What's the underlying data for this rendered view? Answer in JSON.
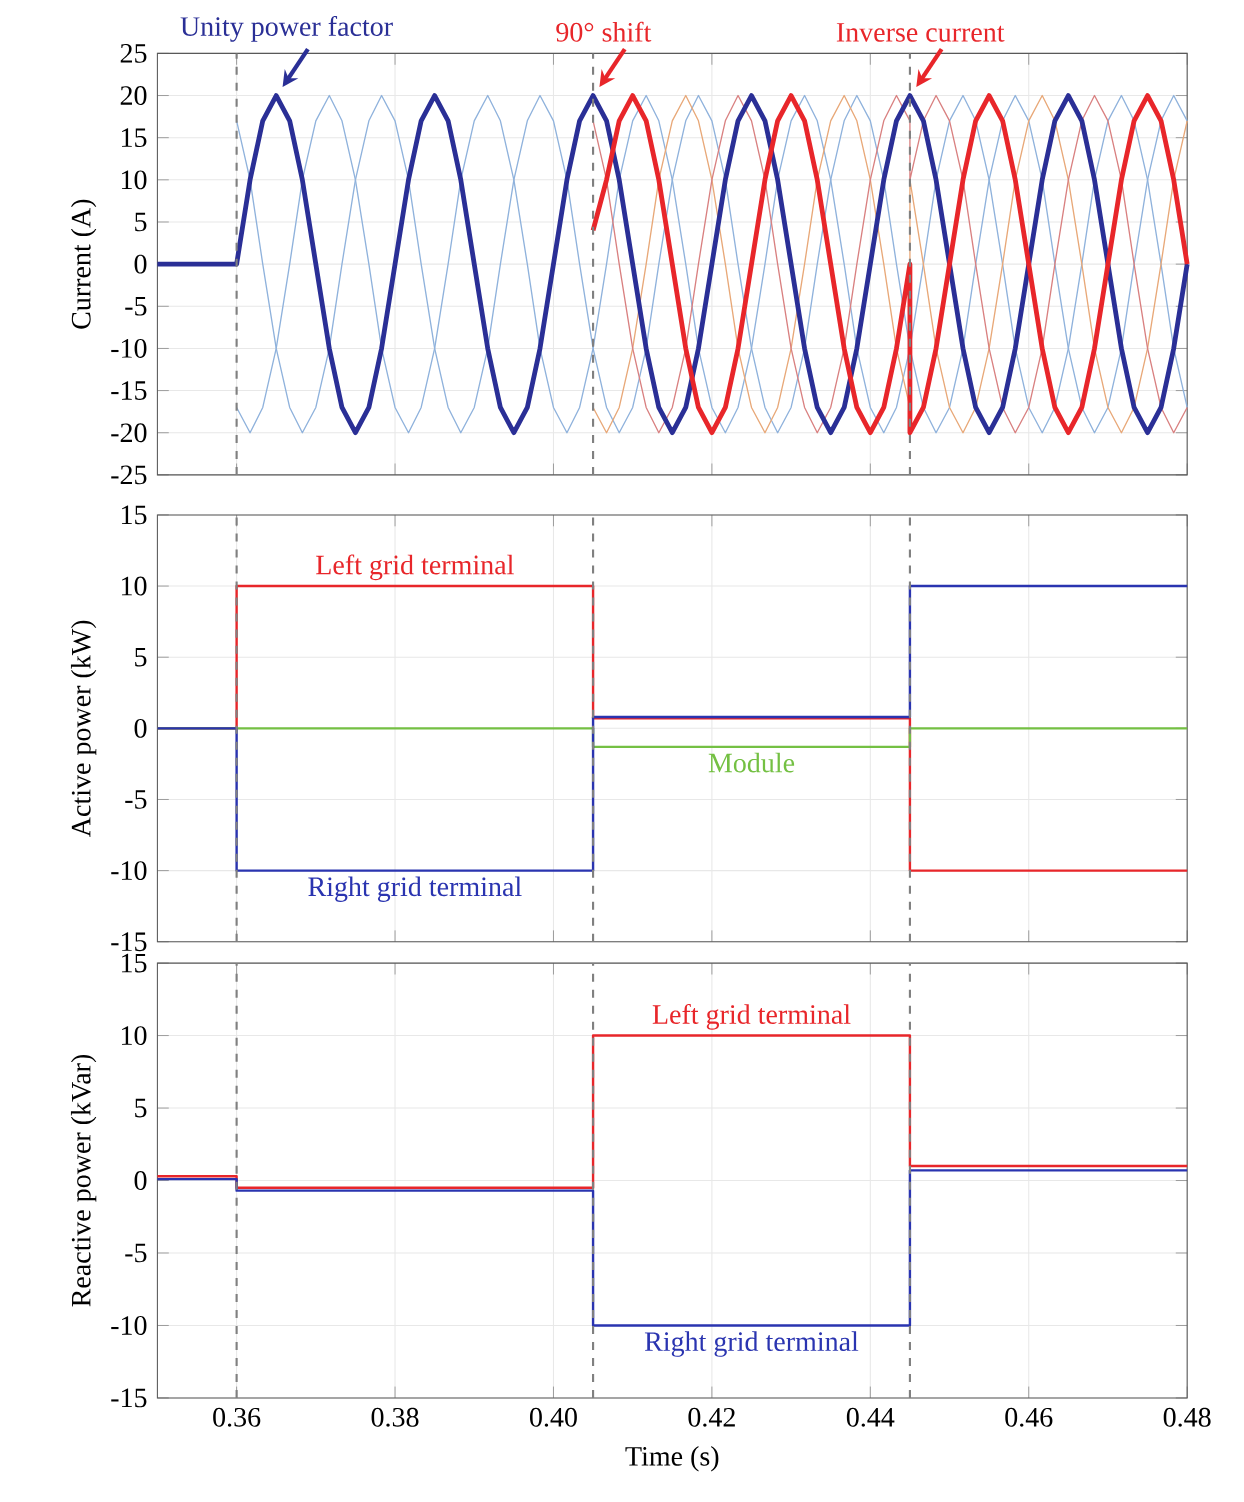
{
  "chart_data": [
    {
      "type": "line",
      "ylabel": "Current (A)",
      "xlim": [
        0.35,
        0.48
      ],
      "ylim": [
        -25,
        25
      ],
      "yticks": [
        -25,
        -20,
        -15,
        -10,
        -5,
        0,
        5,
        10,
        15,
        20,
        25
      ],
      "xticks": [
        0.36,
        0.38,
        0.4,
        0.42,
        0.44,
        0.46,
        0.48
      ],
      "tick_labels": "y",
      "grid": true,
      "x": [
        0.35,
        0.36,
        0.3617,
        0.3633,
        0.365,
        0.3667,
        0.3683,
        0.37,
        0.3717,
        0.3733,
        0.375,
        0.3767,
        0.3783,
        0.38,
        0.3817,
        0.3833,
        0.385,
        0.3867,
        0.3883,
        0.39,
        0.3917,
        0.3933,
        0.395,
        0.3967,
        0.3983,
        0.4,
        0.4017,
        0.4033,
        0.405,
        0.4067,
        0.4083,
        0.41,
        0.4117,
        0.4133,
        0.415,
        0.4167,
        0.4183,
        0.42,
        0.4217,
        0.4233,
        0.425,
        0.4267,
        0.4283,
        0.43,
        0.4317,
        0.4333,
        0.435,
        0.4367,
        0.4383,
        0.44,
        0.4417,
        0.4433,
        0.445,
        0.4467,
        0.4483,
        0.45,
        0.4517,
        0.4533,
        0.455,
        0.4567,
        0.4583,
        0.46,
        0.4617,
        0.4633,
        0.465,
        0.4667,
        0.4683,
        0.47,
        0.4717,
        0.4733,
        0.475,
        0.4767,
        0.4783,
        0.48
      ],
      "series": [
        {
          "color": "#8fb2dc",
          "values": [
            null,
            -17,
            -20,
            -17,
            -10,
            0,
            10,
            17,
            20,
            17,
            10,
            0,
            -10,
            -17,
            -20,
            -17,
            -10,
            0,
            10,
            17,
            20,
            17,
            10,
            0,
            -10,
            -17,
            -20,
            -17,
            -10,
            0,
            10,
            17,
            20,
            17,
            10,
            0,
            -10,
            -17,
            -20,
            -17,
            -10,
            0,
            10,
            17,
            20,
            17,
            10,
            0,
            -10,
            -17,
            -20,
            -17,
            -10,
            0,
            10,
            17,
            20,
            17,
            10,
            0,
            -10,
            -17,
            -20,
            -17,
            -10,
            0,
            10,
            17,
            20,
            17,
            10,
            0,
            -10,
            -17
          ]
        },
        {
          "color": "#8fb2dc",
          "values": [
            null,
            17,
            10,
            0,
            -10,
            -17,
            -20,
            -17,
            -10,
            0,
            10,
            17,
            20,
            17,
            10,
            0,
            -10,
            -17,
            -20,
            -17,
            -10,
            0,
            10,
            17,
            20,
            17,
            10,
            0,
            -10,
            -17,
            -20,
            -17,
            -10,
            0,
            10,
            17,
            20,
            17,
            10,
            0,
            -10,
            -17,
            -20,
            -17,
            -10,
            0,
            10,
            17,
            20,
            17,
            10,
            0,
            -10,
            -17,
            -20,
            -17,
            -10,
            0,
            10,
            17,
            20,
            17,
            10,
            0,
            -10,
            -17,
            -20,
            -17,
            -10,
            0,
            10,
            17,
            20,
            17
          ]
        },
        {
          "color": "#e8a878",
          "x": [
            0.405,
            0.4067,
            0.4083,
            0.41,
            0.4117,
            0.4133,
            0.415,
            0.4167,
            0.4183,
            0.42,
            0.4217,
            0.4233,
            0.425,
            0.4267,
            0.4283,
            0.43,
            0.4317,
            0.4333,
            0.435,
            0.4367,
            0.4383,
            0.44,
            0.4417,
            0.4433,
            0.445,
            0.445,
            0.4467,
            0.4483,
            0.45,
            0.4517,
            0.4533,
            0.455,
            0.4567,
            0.4583,
            0.46,
            0.4617,
            0.4633,
            0.465,
            0.4667,
            0.4683,
            0.47,
            0.4717,
            0.4733,
            0.475,
            0.4767,
            0.4783,
            0.48
          ],
          "values": [
            -17,
            -20,
            -17,
            -10,
            0,
            10,
            17,
            20,
            17,
            10,
            0,
            -10,
            -17,
            -20,
            -17,
            -10,
            0,
            10,
            17,
            20,
            17,
            10,
            0,
            -10,
            -17,
            10,
            0,
            -10,
            -17,
            -20,
            -17,
            -10,
            0,
            10,
            17,
            20,
            17,
            10,
            0,
            -10,
            -17,
            -20,
            -17,
            -10,
            0,
            10,
            17
          ]
        },
        {
          "color": "#d98080",
          "x": [
            0.405,
            0.4067,
            0.4083,
            0.41,
            0.4117,
            0.4133,
            0.415,
            0.4167,
            0.4183,
            0.42,
            0.4217,
            0.4233,
            0.425,
            0.4267,
            0.4283,
            0.43,
            0.4317,
            0.4333,
            0.435,
            0.4367,
            0.4383,
            0.44,
            0.4417,
            0.4433,
            0.445,
            0.445,
            0.4467,
            0.4483,
            0.45,
            0.4517,
            0.4533,
            0.455,
            0.4567,
            0.4583,
            0.46,
            0.4617,
            0.4633,
            0.465,
            0.4667,
            0.4683,
            0.47,
            0.4717,
            0.4733,
            0.475,
            0.4767,
            0.4783,
            0.48
          ],
          "values": [
            17,
            10,
            0,
            -10,
            -17,
            -20,
            -17,
            -10,
            0,
            10,
            17,
            20,
            17,
            10,
            0,
            -10,
            -17,
            -20,
            -17,
            -10,
            0,
            10,
            17,
            20,
            17,
            10,
            17,
            20,
            17,
            10,
            0,
            -10,
            -17,
            -20,
            -17,
            -10,
            0,
            10,
            17,
            20,
            17,
            10,
            0,
            -10,
            -17,
            -20,
            -17
          ]
        },
        {
          "color": "#2a2f96",
          "values": [
            0,
            0,
            10,
            17,
            20,
            17,
            10,
            0,
            -10,
            -17,
            -20,
            -17,
            -10,
            0,
            10,
            17,
            20,
            17,
            10,
            0,
            -10,
            -17,
            -20,
            -17,
            -10,
            0,
            10,
            17,
            20,
            17,
            10,
            0,
            -10,
            -17,
            -20,
            -17,
            -10,
            0,
            10,
            17,
            20,
            17,
            10,
            0,
            -10,
            -17,
            -20,
            -17,
            -10,
            0,
            10,
            17,
            20,
            17,
            10,
            0,
            -10,
            -17,
            -20,
            -17,
            -10,
            0,
            10,
            17,
            20,
            17,
            10,
            0,
            -10,
            -17,
            -20,
            -17,
            -10,
            0
          ]
        },
        {
          "color": "#e8262a",
          "x": [
            0.405,
            0.4067,
            0.4083,
            0.41,
            0.4117,
            0.4133,
            0.415,
            0.4167,
            0.4183,
            0.42,
            0.4217,
            0.4233,
            0.425,
            0.4267,
            0.4283,
            0.43,
            0.4317,
            0.4333,
            0.435,
            0.4367,
            0.4383,
            0.44,
            0.4417,
            0.4433,
            0.445,
            0.445,
            0.4467,
            0.4483,
            0.45,
            0.4517,
            0.4533,
            0.455,
            0.4567,
            0.4583,
            0.46,
            0.4617,
            0.4633,
            0.465,
            0.4667,
            0.4683,
            0.47,
            0.4717,
            0.4733,
            0.475,
            0.4767,
            0.4783,
            0.48
          ],
          "values": [
            4,
            10,
            17,
            20,
            17,
            10,
            0,
            -10,
            -17,
            -20,
            -17,
            -10,
            0,
            10,
            17,
            20,
            17,
            10,
            0,
            -10,
            -17,
            -20,
            -17,
            -10,
            0,
            -20,
            -17,
            -10,
            0,
            10,
            17,
            20,
            17,
            10,
            0,
            -10,
            -17,
            -20,
            -17,
            -10,
            0,
            10,
            17,
            20,
            17,
            10,
            0
          ]
        }
      ],
      "annotations": [
        {
          "text": "Unity power factor",
          "x": 0.365,
          "y": 20
        },
        {
          "text": "90° shift",
          "x": 0.405,
          "y": 20
        },
        {
          "text": "Inverse current",
          "x": 0.445,
          "y": 20
        }
      ],
      "ref_lines": [
        {
          "axis": "x",
          "value": 0.36,
          "color": "#808080",
          "line_style": "dashed"
        },
        {
          "axis": "x",
          "value": 0.405,
          "color": "#808080",
          "line_style": "dashed"
        },
        {
          "axis": "x",
          "value": 0.445,
          "color": "#808080",
          "line_style": "dashed"
        }
      ]
    },
    {
      "type": "line",
      "ylabel": "Active power (kW)",
      "xlim": [
        0.35,
        0.48
      ],
      "ylim": [
        -15,
        15
      ],
      "yticks": [
        -15,
        -10,
        -5,
        0,
        5,
        10,
        15
      ],
      "xticks": [
        0.36,
        0.38,
        0.4,
        0.42,
        0.44,
        0.46,
        0.48
      ],
      "tick_labels": "y",
      "grid": true,
      "x": [
        0.35,
        0.36,
        0.36,
        0.405,
        0.405,
        0.445,
        0.445,
        0.48
      ],
      "series": [
        {
          "name": "Left grid terminal",
          "color": "#e8262a",
          "values": [
            0,
            0,
            10,
            10,
            0.7,
            0.7,
            -10,
            -10
          ]
        },
        {
          "name": "Module",
          "color": "#74c043",
          "values": [
            0,
            0,
            0,
            0,
            -1.3,
            -1.3,
            0,
            0
          ]
        },
        {
          "name": "Right grid terminal",
          "color": "#2a34b0",
          "values": [
            0,
            0,
            -10,
            -10,
            0.8,
            0.8,
            10,
            10
          ]
        }
      ],
      "ref_lines": [
        {
          "axis": "x",
          "value": 0.36,
          "color": "#808080",
          "line_style": "dashed"
        },
        {
          "axis": "x",
          "value": 0.405,
          "color": "#808080",
          "line_style": "dashed"
        },
        {
          "axis": "x",
          "value": 0.445,
          "color": "#808080",
          "line_style": "dashed"
        }
      ]
    },
    {
      "type": "line",
      "ylabel": "Reactive power (kVar)",
      "xlabel": "Time (s)",
      "xlim": [
        0.35,
        0.48
      ],
      "ylim": [
        -15,
        15
      ],
      "yticks": [
        -15,
        -10,
        -5,
        0,
        5,
        10,
        15
      ],
      "xticks": [
        0.36,
        0.38,
        {
          "value": 0.4,
          "label": "0.40"
        },
        0.42,
        0.44,
        0.46,
        0.48
      ],
      "grid": true,
      "x": [
        0.35,
        0.36,
        0.36,
        0.405,
        0.405,
        0.445,
        0.445,
        0.48
      ],
      "series": [
        {
          "name": "Left grid terminal",
          "color": "#e8262a",
          "values": [
            0.3,
            0.3,
            -0.5,
            -0.5,
            10,
            10,
            1,
            1
          ]
        },
        {
          "name": "Right grid terminal",
          "color": "#2a34b0",
          "values": [
            0.1,
            0.1,
            -0.7,
            -0.7,
            -10,
            -10,
            0.7,
            0.7
          ]
        }
      ],
      "ref_lines": [
        {
          "axis": "x",
          "value": 0.36,
          "color": "#808080",
          "line_style": "dashed"
        },
        {
          "axis": "x",
          "value": 0.405,
          "color": "#808080",
          "line_style": "dashed"
        },
        {
          "axis": "x",
          "value": 0.445,
          "color": "#808080",
          "line_style": "dashed"
        }
      ]
    }
  ]
}
